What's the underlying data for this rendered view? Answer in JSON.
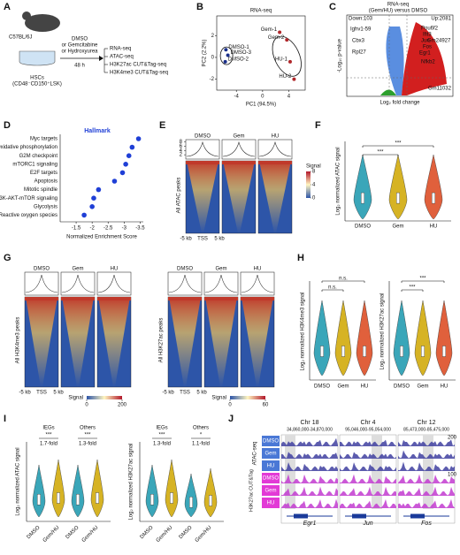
{
  "panels": {
    "A": {
      "letter": "A",
      "mouse": "C57BL/6J",
      "treatment": [
        "DMSO",
        "or Gemcitabine",
        "or Hydroxyurea"
      ],
      "duration": "48 h",
      "cells": [
        "HSCs",
        "(CD48⁻CD150⁺LSK)"
      ],
      "assays": [
        "RNA-seq",
        "ATAC-seq",
        "H3K27ac CUT&Tag-seq",
        "H3K4me3 CUT&Tag-seq"
      ]
    },
    "B": {
      "letter": "B",
      "chart_data": {
        "type": "scatter",
        "title": "RNA-seq",
        "x_label": "PC1 (94.5%)",
        "y_label": "PC2 (2.2%)",
        "point_labels": [
          "DMSO-1",
          "DMSO-2",
          "DMSO-3",
          "Gem-1",
          "Gem-2",
          "HU-1",
          "HU-2"
        ],
        "x": [
          -5.6,
          -5.7,
          -5.3,
          2.6,
          3.7,
          4.2,
          4.8
        ],
        "values": [
          0.7,
          -0.4,
          0.2,
          2.3,
          1.6,
          -0.4,
          -2.0
        ],
        "colors": [
          "#1a2f8a",
          "#1a2f8a",
          "#1a2f8a",
          "#b0272a",
          "#b0272a",
          "#b0272a",
          "#b0272a"
        ],
        "xlim": [
          -7,
          6.5
        ],
        "ylim": [
          -3,
          3.8
        ],
        "xticks": [
          -4,
          0,
          4
        ],
        "yticks": [
          -2,
          0,
          2
        ]
      }
    },
    "C": {
      "letter": "C",
      "title": [
        "RNA-seq",
        "(Gem/HU) versus DMSO"
      ],
      "down": "Down:103",
      "up": "Up:2081",
      "genes": [
        "Ighv1-59",
        "Cbx3",
        "Rpl27",
        "Pou6f2",
        "Ifit3",
        "Jun",
        "Gm24927",
        "Fos",
        "Egr1",
        "Nfkb2",
        "Gm11032"
      ],
      "x_label": "Log₂ fold change",
      "y_label": "-Log₁₀ p-value"
    },
    "D": {
      "letter": "D",
      "chart_data": {
        "type": "dot",
        "title": "Hallmark",
        "categories": [
          "Myc targets",
          "Oxidative phosphorylation",
          "G2M checkpoint",
          "mTORC1 signaling",
          "E2F targets",
          "Apoptosis",
          "Mitotic spindle",
          "PI3K-AKT-mTOR signaling",
          "Glycolysis",
          "Reactive oxygen species"
        ],
        "values": [
          -3.45,
          -3.25,
          -3.15,
          -3.05,
          -2.95,
          -2.7,
          -2.2,
          -2.05,
          -2.0,
          -1.75
        ],
        "color": "#1f3fd6",
        "x_label": "Normalized Enrichment Score",
        "xlim": [
          -1.0,
          -3.6
        ],
        "xticks": [
          -1.5,
          -2.0,
          -2.5,
          -3.0,
          -3.5
        ]
      }
    },
    "E": {
      "letter": "E",
      "columns": [
        "DMSO",
        "Gem",
        "HU"
      ],
      "yticks": [
        2,
        4,
        6,
        8
      ],
      "ylim": [
        0,
        9
      ],
      "y_label": "All ATAC peaks",
      "x_labels": [
        "-5 kb",
        "TSS",
        "5 kb"
      ],
      "legend": {
        "title": "Signal",
        "ticks": [
          0,
          4,
          8
        ],
        "lim": [
          0,
          8
        ]
      }
    },
    "F": {
      "letter": "F",
      "y_label": "Log₂ normalized ATAC signal",
      "categories": [
        "DMSO",
        "Gem",
        "HU"
      ],
      "colors": [
        "#3aa6b9",
        "#d6b324",
        "#e0603c"
      ],
      "significance": [
        "***",
        "***"
      ]
    },
    "G": {
      "letter": "G",
      "blocks": [
        {
          "columns": [
            "DMSO",
            "Gem",
            "HU"
          ],
          "y_label": "All H3K4me3 peaks",
          "x_labels": [
            "-5 kb",
            "TSS",
            "5 kb"
          ],
          "legend": {
            "title": "Signal",
            "ticks": [
              0,
              200
            ],
            "lim": [
              0,
              200
            ]
          }
        },
        {
          "columns": [
            "DMSO",
            "Gem",
            "HU"
          ],
          "y_label": "All H3K27ac peaks",
          "x_labels": [
            "-5 kb",
            "TSS",
            "5 kb"
          ],
          "legend": {
            "title": "Signal",
            "ticks": [
              0,
              60
            ],
            "lim": [
              0,
              60
            ]
          }
        }
      ]
    },
    "H": {
      "letter": "H",
      "charts": [
        {
          "y_label": "Log₂ normalized H3K4me3 signal",
          "categories": [
            "DMSO",
            "Gem",
            "HU"
          ],
          "significance": [
            "n.s.",
            "n.s."
          ]
        },
        {
          "y_label": "Log₂ normalized H3K27ac signal",
          "categories": [
            "DMSO",
            "Gem",
            "HU"
          ],
          "significance": [
            "***",
            "***"
          ]
        }
      ]
    },
    "I": {
      "letter": "I",
      "charts": [
        {
          "y_label": "Log₂ normalized ATAC signal",
          "groups": [
            {
              "name": "IEGs",
              "fold": "1.7-fold",
              "significance": "***"
            },
            {
              "name": "Others",
              "fold": "1.3-fold",
              "significance": "***"
            }
          ],
          "categories": [
            "DMSO",
            "Gem/HU",
            "DMSO",
            "Gem/HU"
          ]
        },
        {
          "y_label": "Log₂ normalized H3K27ac signal",
          "groups": [
            {
              "name": "IEGs",
              "fold": "1.3-fold",
              "significance": "***"
            },
            {
              "name": "Others",
              "fold": "1.1-fold",
              "significance": "*"
            }
          ],
          "categories": [
            "DMSO",
            "Gem/HU",
            "DMSO",
            "Gem/HU"
          ]
        }
      ]
    },
    "J": {
      "letter": "J",
      "loci": [
        {
          "chr": "Chr 18",
          "coords": "34,860,000-34,870,000",
          "gene": "Egr1"
        },
        {
          "chr": "Chr 4",
          "coords": "95,046,000-95,054,000",
          "gene": "Jun"
        },
        {
          "chr": "Chr 12",
          "coords": "85,473,000-85,475,000",
          "gene": "Fos"
        }
      ],
      "tracks": [
        "DMSO",
        "Gem",
        "HU",
        "DMSO",
        "Gem",
        "HU"
      ],
      "groups": [
        "ATAC-seq",
        "H3K27ac CUT&Tag"
      ],
      "scales": [
        "200",
        "100"
      ]
    }
  }
}
